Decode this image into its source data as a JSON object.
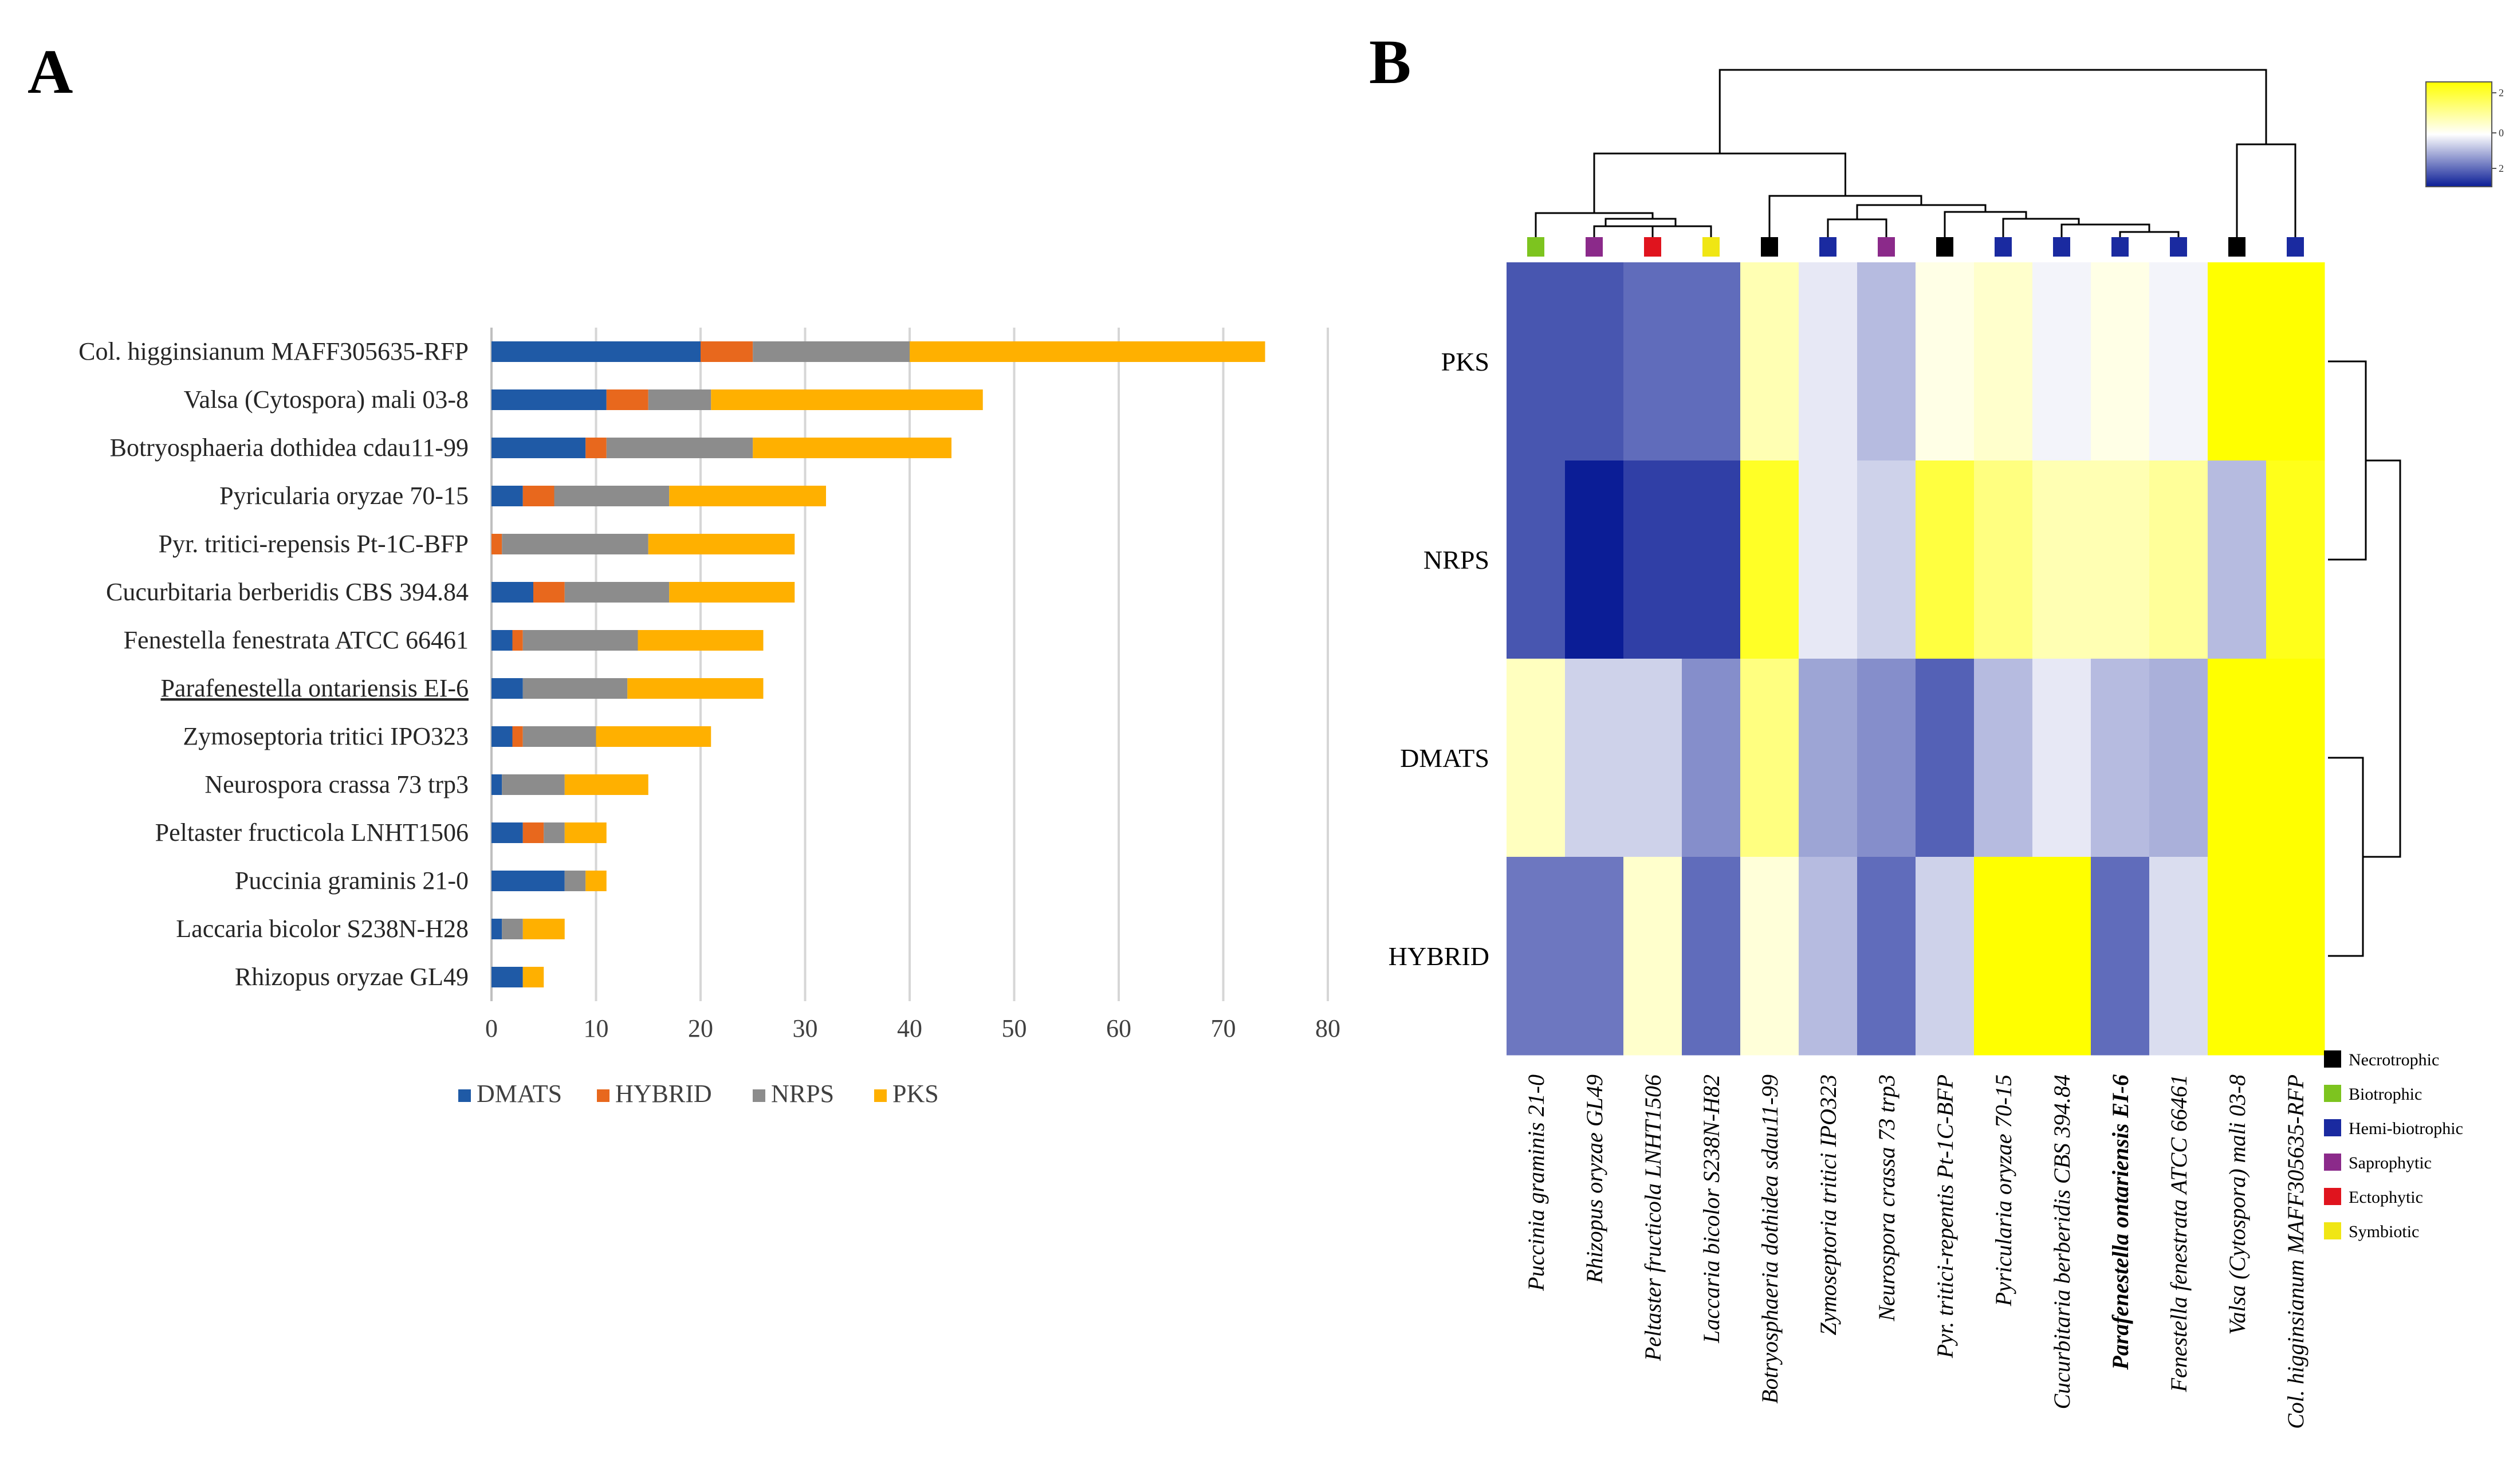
{
  "panel_a": {
    "label": "A",
    "chart_data": {
      "type": "bar",
      "orientation": "horizontal",
      "stacked": true,
      "categories": [
        "Col. higginsianum MAFF305635-RFP",
        "Valsa (Cytospora) mali 03-8",
        "Botryosphaeria dothidea cdau11-99",
        "Pyricularia oryzae 70-15",
        "Pyr. tritici-repensis Pt-1C-BFP",
        "Cucurbitaria berberidis CBS 394.84",
        "Fenestella fenestrata ATCC 66461",
        "Parafenestella ontariensis EI-6",
        "Zymoseptoria tritici IPO323",
        "Neurospora crassa 73 trp3",
        "Peltaster fructicola LNHT1506",
        "Puccinia graminis 21-0",
        "Laccaria bicolor S238N-H28",
        "Rhizopus oryzae GL49"
      ],
      "underlined_category": "Parafenestella ontariensis EI-6",
      "series": [
        {
          "name": "DMATS",
          "color": "#1f5aa6",
          "values": [
            20,
            11,
            9,
            3,
            0,
            4,
            2,
            3,
            2,
            1,
            3,
            7,
            1,
            3
          ]
        },
        {
          "name": "HYBRID",
          "color": "#e8681d",
          "values": [
            5,
            4,
            2,
            3,
            1,
            3,
            1,
            0,
            1,
            0,
            2,
            0,
            0,
            0
          ]
        },
        {
          "name": "NRPS",
          "color": "#8c8c8c",
          "values": [
            15,
            6,
            14,
            11,
            14,
            10,
            11,
            10,
            7,
            6,
            2,
            2,
            2,
            0
          ]
        },
        {
          "name": "PKS",
          "color": "#ffb000",
          "values": [
            34,
            26,
            19,
            15,
            14,
            12,
            12,
            13,
            11,
            8,
            4,
            2,
            4,
            2
          ]
        }
      ],
      "xlim": [
        0,
        80
      ],
      "xticks": [
        0,
        10,
        20,
        30,
        40,
        50,
        60,
        70,
        80
      ],
      "grid": true,
      "legend": "bottom"
    }
  },
  "panel_b": {
    "label": "B",
    "chart_data": {
      "type": "heatmap",
      "rows": [
        "PKS",
        "NRPS",
        "DMATS",
        "HYBRID"
      ],
      "columns": [
        "Puccinia graminis 21-0",
        "Rhizopus oryzae GL49",
        "Peltaster fructicola LNHT1506",
        "Laccaria bicolor S238N-H82",
        "Botryosphaeria dothidea sdau11-99",
        "Zymoseptoria tritici IPO323",
        "Neurospora crassa 73 trp3",
        "Pyr. tritici-repentis Pt-1C-BFP",
        "Pyricularia oryzae 70-15",
        "Cucurbitaria berberidis CBS 394.84",
        "Parafenestella ontariensis EI-6",
        "Fenestella fenestrata ATCC 66461",
        "Valsa (Cytospora) mali 03-8",
        "Col. higginsianum MAFF305635-RFP"
      ],
      "bold_column": "Parafenestella ontariensis EI-6",
      "values": [
        [
          -1.5,
          -1.5,
          -1.3,
          -1.3,
          0.6,
          -0.2,
          -0.6,
          0.2,
          0.4,
          -0.1,
          0.2,
          -0.1,
          2,
          2
        ],
        [
          -1.5,
          -2.0,
          -1.7,
          -1.7,
          1.7,
          -0.2,
          -0.4,
          1.5,
          1.0,
          0.6,
          0.6,
          0.8,
          -0.6,
          1.8
        ],
        [
          0.5,
          -0.4,
          -0.4,
          -1.0,
          1.0,
          -0.8,
          -1.0,
          -1.4,
          -0.6,
          -0.2,
          -0.6,
          -0.7,
          2,
          2
        ],
        [
          -1.2,
          -1.2,
          0.4,
          -1.3,
          0.3,
          -0.6,
          -1.3,
          -0.4,
          2,
          2,
          -1.3,
          -0.3,
          2,
          2
        ]
      ],
      "color_scale": {
        "min": -2,
        "mid": 0,
        "max": 2,
        "low_color": "#0b1d96",
        "mid_color": "#ffffff",
        "high_color": "#ffff00"
      },
      "colorbar_ticks": [
        "2",
        "0",
        "2"
      ],
      "column_lifestyle": [
        "Biotrophic",
        "Saprophytic",
        "Ectophytic",
        "Symbiotic",
        "Necrotrophic",
        "Hemi-biotrophic",
        "Saprophytic",
        "Necrotrophic",
        "Hemi-biotrophic",
        "Hemi-biotrophic",
        "Hemi-biotrophic",
        "Hemi-biotrophic",
        "Necrotrophic",
        "Hemi-biotrophic"
      ],
      "legend": [
        {
          "name": "Necrotrophic",
          "color": "#000000"
        },
        {
          "name": "Biotrophic",
          "color": "#7dc41f"
        },
        {
          "name": "Hemi-biotrophic",
          "color": "#1a2aa0"
        },
        {
          "name": "Saprophytic",
          "color": "#8b2a8a"
        },
        {
          "name": "Ectophytic",
          "color": "#e0141e"
        },
        {
          "name": "Symbiotic",
          "color": "#f0e614"
        }
      ]
    }
  }
}
